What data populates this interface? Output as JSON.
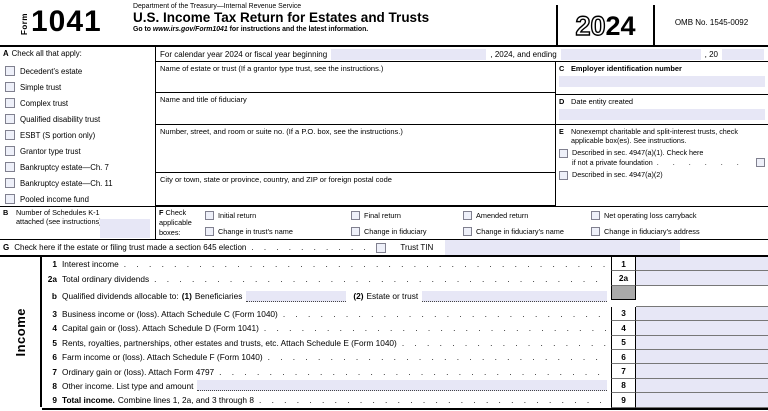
{
  "header": {
    "form_word": "Form",
    "form_number": "1041",
    "agency": "Department of the Treasury—Internal Revenue Service",
    "title": "U.S. Income Tax Return for Estates and Trusts",
    "goto_prefix": "Go to ",
    "goto_url": "www.irs.gov/Form1041",
    "goto_suffix": " for instructions and the latest information.",
    "year_outline": "20",
    "year_solid": "24",
    "omb": "OMB No. 1545-0092"
  },
  "line_a": {
    "letter": "A",
    "label": "Check all that apply:",
    "cal_prefix": "For calendar year 2024 or fiscal year beginning",
    "cal_mid": ", 2024, and ending",
    "cal_suffix": ", 20"
  },
  "entity_types": [
    "Decedent’s estate",
    "Simple trust",
    "Complex trust",
    "Qualified disability trust",
    "ESBT (S portion only)",
    "Grantor type trust",
    "Bankruptcy estate—Ch. 7",
    "Bankruptcy estate—Ch. 11",
    "Pooled income fund"
  ],
  "address_fields": [
    "Name of estate or trust (If a grantor type trust, see the instructions.)",
    "Name and title of fiduciary",
    "Number, street, and room or suite no. (If a P.O. box, see the instructions.)",
    "City or town, state or province, country, and ZIP or foreign postal code"
  ],
  "line_b": {
    "letter": "B",
    "label": "Number of Schedules K-1 attached (see instructions)"
  },
  "line_c": {
    "letter": "C",
    "label": "Employer identification number"
  },
  "line_d": {
    "letter": "D",
    "label": "Date entity created"
  },
  "line_e": {
    "letter": "E",
    "label": "Nonexempt charitable and split-interest trusts, check applicable box(es). See instructions.",
    "opt1": "Described in sec. 4947(a)(1). Check here",
    "opt1b": "if not a private foundation",
    "opt2": "Described in sec. 4947(a)(2)"
  },
  "line_f": {
    "letter": "F",
    "label": "Check applicable boxes:",
    "row1": [
      "Initial return",
      "Final return",
      "Amended return",
      "Net operating loss carryback"
    ],
    "row2": [
      "Change in trust’s name",
      "Change in fiduciary",
      "Change in fiduciary’s name",
      "Change in fiduciary’s address"
    ]
  },
  "line_g": {
    "letter": "G",
    "label": "Check here if the estate or filing trust made a section 645 election",
    "tin_label": "Trust TIN"
  },
  "income": {
    "section_label": "Income",
    "rows": [
      {
        "num": "1",
        "label": "Interest income",
        "box": "1"
      },
      {
        "num": "2a",
        "label": "Total ordinary dividends",
        "box": "2a"
      },
      {
        "num": "b",
        "label": "Qualified dividends allocable to:",
        "sub1_num": "(1)",
        "sub1_label": "Beneficiaries",
        "sub2_num": "(2)",
        "sub2_label": "Estate or trust",
        "box": ""
      },
      {
        "num": "3",
        "label": "Business income or (loss). Attach Schedule C (Form 1040)",
        "box": "3"
      },
      {
        "num": "4",
        "label": "Capital gain or (loss). Attach Schedule D (Form 1041)",
        "box": "4"
      },
      {
        "num": "5",
        "label": "Rents, royalties, partnerships, other estates and trusts, etc. Attach Schedule E (Form 1040)",
        "box": "5"
      },
      {
        "num": "6",
        "label": "Farm income or (loss). Attach Schedule F (Form 1040)",
        "box": "6"
      },
      {
        "num": "7",
        "label": "Ordinary gain or (loss). Attach Form 4797",
        "box": "7"
      },
      {
        "num": "8",
        "label": "Other income. List type and amount",
        "box": "8"
      },
      {
        "num": "9",
        "label_bold": "Total income.",
        "label": "Combine lines 1, 2a, and 3 through 8",
        "box": "9"
      }
    ]
  },
  "colors": {
    "field_blue": "#e7e7f6",
    "shaded_gray": "#a9a9a9"
  }
}
